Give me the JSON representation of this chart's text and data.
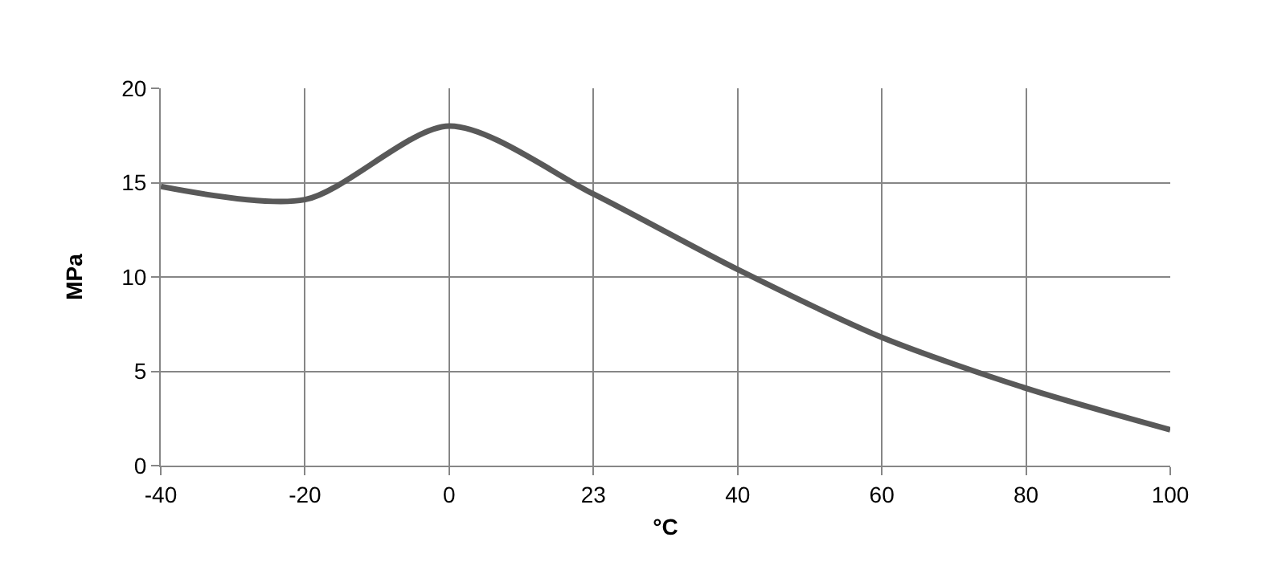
{
  "chart_data": {
    "type": "line",
    "xlabel": "°C",
    "ylabel": "MPa",
    "categories": [
      "-40",
      "-20",
      "0",
      "23",
      "40",
      "60",
      "80",
      "100"
    ],
    "series": [
      {
        "color": "#595959",
        "values": [
          14.8,
          14.1,
          18.0,
          14.4,
          10.4,
          6.8,
          4.1,
          1.9
        ]
      }
    ],
    "ylim": [
      0,
      20
    ],
    "yticks": [
      0,
      5,
      10,
      15,
      20
    ],
    "grid": true,
    "marker": "none",
    "line_style": "solid"
  }
}
